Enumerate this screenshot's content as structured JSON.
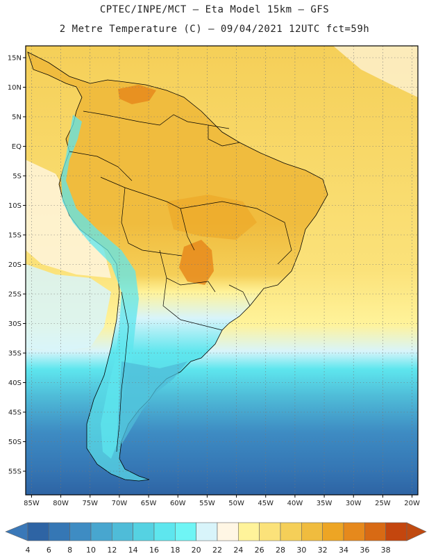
{
  "header": {
    "line1": "CPTEC/INPE/MCT –  Eta Model 15km – GFS",
    "line2": "2 Metre Temperature (C) – 09/04/2021 12UTC fct=59h"
  },
  "map": {
    "lon_range": [
      -86,
      -19
    ],
    "lat_range": [
      -59,
      17
    ],
    "lat_ticks": [
      {
        "value": 15,
        "label": "15N"
      },
      {
        "value": 10,
        "label": "10N"
      },
      {
        "value": 5,
        "label": "5N"
      },
      {
        "value": 0,
        "label": "EQ"
      },
      {
        "value": -5,
        "label": "5S"
      },
      {
        "value": -10,
        "label": "10S"
      },
      {
        "value": -15,
        "label": "15S"
      },
      {
        "value": -20,
        "label": "20S"
      },
      {
        "value": -25,
        "label": "25S"
      },
      {
        "value": -30,
        "label": "30S"
      },
      {
        "value": -35,
        "label": "35S"
      },
      {
        "value": -40,
        "label": "40S"
      },
      {
        "value": -45,
        "label": "45S"
      },
      {
        "value": -50,
        "label": "50S"
      },
      {
        "value": -55,
        "label": "55S"
      }
    ],
    "lon_ticks": [
      {
        "value": -85,
        "label": "85W"
      },
      {
        "value": -80,
        "label": "80W"
      },
      {
        "value": -75,
        "label": "75W"
      },
      {
        "value": -70,
        "label": "70W"
      },
      {
        "value": -65,
        "label": "65W"
      },
      {
        "value": -60,
        "label": "60W"
      },
      {
        "value": -55,
        "label": "55W"
      },
      {
        "value": -50,
        "label": "50W"
      },
      {
        "value": -45,
        "label": "45W"
      },
      {
        "value": -40,
        "label": "40W"
      },
      {
        "value": -35,
        "label": "35W"
      },
      {
        "value": -30,
        "label": "30W"
      },
      {
        "value": -25,
        "label": "25W"
      },
      {
        "value": -20,
        "label": "20W"
      }
    ]
  },
  "colorbar": {
    "labels": [
      "4",
      "6",
      "8",
      "10",
      "12",
      "14",
      "16",
      "18",
      "20",
      "22",
      "24",
      "26",
      "28",
      "30",
      "32",
      "34",
      "36",
      "38"
    ],
    "low_color": "#3a78b8",
    "high_color": "#c04a10",
    "colors": [
      "#2e64a4",
      "#3577b5",
      "#3e8cc3",
      "#48a6cf",
      "#4fbcd8",
      "#55d2e2",
      "#5ee6ee",
      "#6ff5f5",
      "#d8f4fa",
      "#fff6e4",
      "#fff39a",
      "#fbe27a",
      "#f5cf58",
      "#f0bc3e",
      "#eda524",
      "#e6891c",
      "#d86a14",
      "#c4460e"
    ]
  },
  "palette": {
    "ocean_cold": "#2e64a4",
    "ocean_mid": "#4fbcd8",
    "ocean_cyan": "#5ee6ee",
    "ocean_warm": "#fbe27a",
    "land_hot": "#f0bc3e",
    "land_very_hot": "#e6891c",
    "andes": "#55d2e2",
    "border": "#000000"
  }
}
